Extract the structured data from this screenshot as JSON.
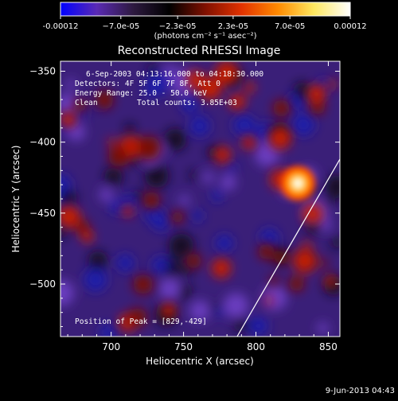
{
  "chart_data": {
    "type": "heatmap",
    "title": "Reconstructed RHESSI Image",
    "xlabel": "Heliocentric X (arcsec)",
    "ylabel": "Heliocentric Y (arcsec)",
    "xlim": [
      665,
      858
    ],
    "ylim": [
      -537,
      -343
    ],
    "x_ticks": [
      700,
      750,
      800,
      850
    ],
    "x_tick_labels": [
      "700",
      "750",
      "800",
      "850"
    ],
    "y_ticks": [
      -350,
      -400,
      -450,
      -500
    ],
    "y_tick_labels": [
      "−350",
      "−400",
      "−450",
      "−500"
    ],
    "colorbar": {
      "range": [
        -0.00012,
        0.00012
      ],
      "tick_values": [
        -0.00012,
        -7e-05,
        -2.3e-05,
        2.3e-05,
        7e-05,
        0.00012
      ],
      "tick_labels": [
        "-0.00012",
        "−7.0e-05",
        "−2.3e-05",
        "2.3e-05",
        "7.0e-05",
        "0.00012"
      ],
      "unit_label": "(photons cm⁻² s⁻¹ asec⁻²)",
      "colors": [
        "#0000ff",
        "#5a2ab4",
        "#2e1a40",
        "#000000",
        "#801000",
        "#e23200",
        "#ff8a00",
        "#ffe860",
        "#ffffff"
      ]
    },
    "annotations": {
      "time": "6-Sep-2003 04:13:16.000 to 04:18:30.000",
      "detectors": "Detectors: 4F 5F 6F 7F 8F, Att 0",
      "energy": "Energy Range: 25.0 - 50.0 keV",
      "method": "Clean",
      "counts": "Total counts: 3.85E+03",
      "peak": "Position of Peak = [829,-429]"
    },
    "peak": [
      829,
      -429
    ],
    "limb_line": [
      [
        787,
        -537
      ],
      [
        858,
        -412
      ]
    ]
  },
  "footer_date": "9-Jun-2013 04:43"
}
